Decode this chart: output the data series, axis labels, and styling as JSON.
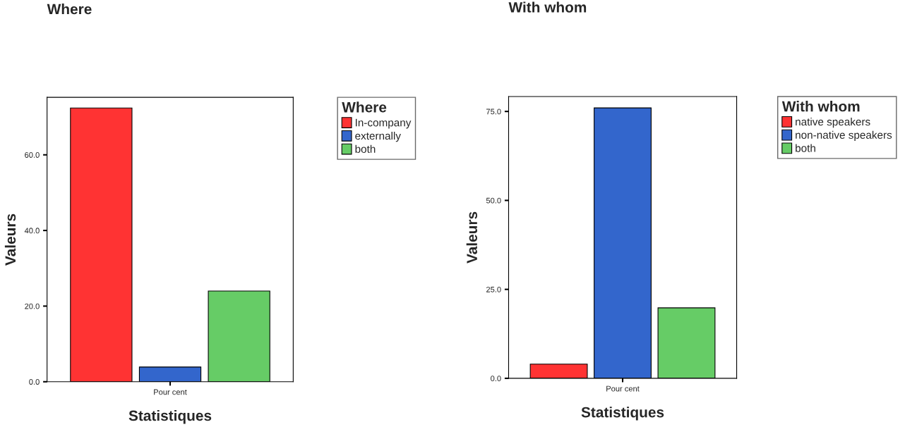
{
  "chart_data": [
    {
      "type": "bar",
      "title": "Where",
      "xlabel": "Statistiques",
      "ylabel": "Valeurs",
      "legend_title": "Where",
      "categories": [
        "Pour cent"
      ],
      "series": [
        {
          "name": "In-company",
          "color": "#ff3333",
          "values": [
            72.4
          ]
        },
        {
          "name": "externally",
          "color": "#3366cc",
          "values": [
            3.9
          ]
        },
        {
          "name": "both",
          "color": "#66cc66",
          "values": [
            24.0
          ]
        }
      ],
      "ylim": [
        0,
        75.2
      ],
      "yticks": [
        {
          "value": 0,
          "label": "0.0"
        },
        {
          "value": 20,
          "label": "20.0"
        },
        {
          "value": 40,
          "label": "40.0"
        },
        {
          "value": 60,
          "label": "60.0"
        }
      ],
      "grid": false,
      "legend": "top right"
    },
    {
      "type": "bar",
      "title": "With whom",
      "xlabel": "Statistiques",
      "ylabel": "Valeurs",
      "legend_title": "With whom",
      "categories": [
        "Pour cent"
      ],
      "series": [
        {
          "name": "native speakers",
          "color": "#ff3333",
          "values": [
            4.0
          ]
        },
        {
          "name": "non-native speakers",
          "color": "#3366cc",
          "values": [
            76.0
          ]
        },
        {
          "name": "both",
          "color": "#66cc66",
          "values": [
            19.8
          ]
        }
      ],
      "ylim": [
        0,
        79.2
      ],
      "yticks": [
        {
          "value": 0,
          "label": "0.0"
        },
        {
          "value": 25,
          "label": "25.0"
        },
        {
          "value": 50,
          "label": "50.0"
        },
        {
          "value": 75,
          "label": "75.0"
        }
      ],
      "grid": false,
      "legend": "top right"
    }
  ]
}
